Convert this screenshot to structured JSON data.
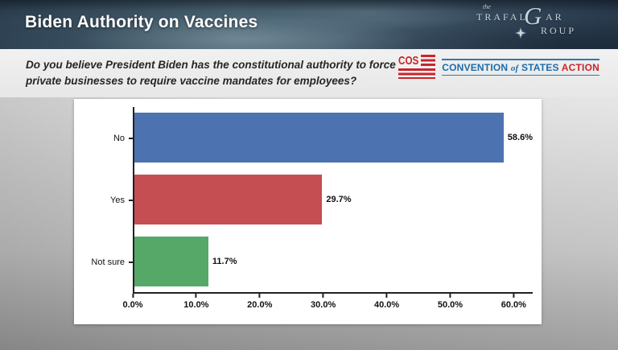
{
  "slide": {
    "title": "Biden Authority on Vaccines",
    "question": "Do you believe President Biden has the constitutional authority to force private businesses to require vaccine mandates for employees?"
  },
  "trafalgar_logo": {
    "the": "the",
    "trafal": "TRAFAL",
    "g": "G",
    "ar": "AR",
    "roup": "ROUP",
    "color": "#c9d2d9"
  },
  "cos_logo": {
    "acronym": "COS",
    "convention": "CONVENTION",
    "of": "of",
    "states": "STATES",
    "action": "ACTION",
    "blue": "#1b6cab",
    "red": "#c9252b"
  },
  "chart_data": {
    "type": "bar",
    "orientation": "horizontal",
    "title": "",
    "xlabel": "",
    "ylabel": "",
    "categories": [
      "No",
      "Yes",
      "Not sure"
    ],
    "values": [
      58.6,
      29.7,
      11.7
    ],
    "value_labels": [
      "58.6%",
      "29.7%",
      "11.7%"
    ],
    "colors": [
      "#4c72b0",
      "#c44e52",
      "#55a868"
    ],
    "x_ticks": [
      {
        "value": 0,
        "label": "0.0%"
      },
      {
        "value": 10,
        "label": "10.0%"
      },
      {
        "value": 20,
        "label": "20.0%"
      },
      {
        "value": 30,
        "label": "30.0%"
      },
      {
        "value": 40,
        "label": "40.0%"
      },
      {
        "value": 50,
        "label": "50.0%"
      },
      {
        "value": 60,
        "label": "60.0%"
      }
    ],
    "xmax": 63,
    "grid": false,
    "legend": false,
    "background": "#ffffff"
  }
}
